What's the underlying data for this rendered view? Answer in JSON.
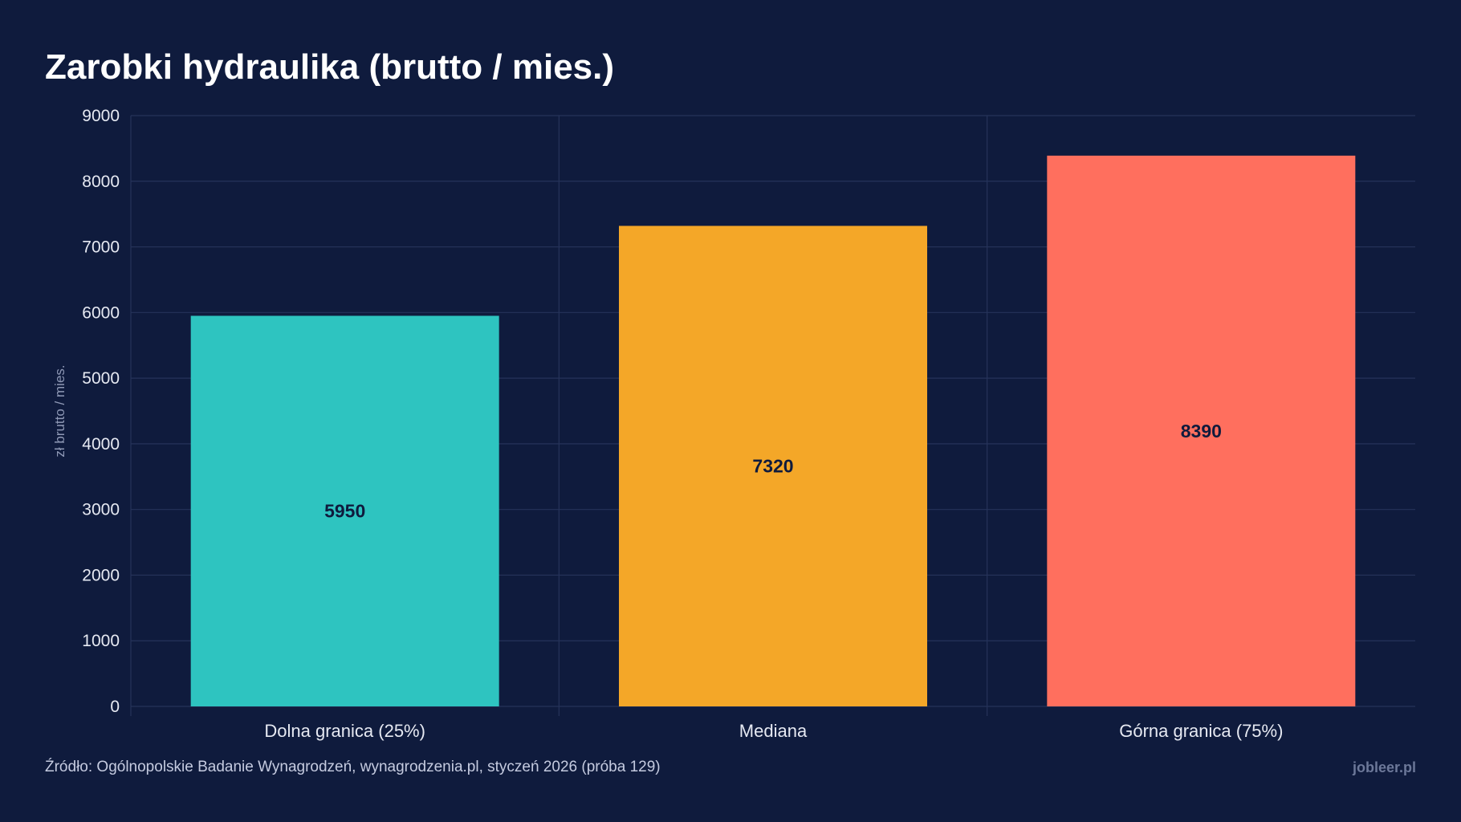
{
  "chart_data": {
    "type": "bar",
    "title": "Zarobki hydraulika (brutto / mies.)",
    "xlabel": "",
    "ylabel": "zł brutto / mies.",
    "categories": [
      "Dolna granica (25%)",
      "Mediana",
      "Górna granica (75%)"
    ],
    "values": [
      5950,
      7320,
      8390
    ],
    "data_labels": [
      "5950",
      "7320",
      "8390"
    ],
    "colors": [
      "#2ec4c0",
      "#f4a728",
      "#ff6f5e"
    ],
    "ylim": [
      0,
      9000
    ],
    "yticks": [
      0,
      1000,
      2000,
      3000,
      4000,
      5000,
      6000,
      7000,
      8000,
      9000
    ],
    "ytick_labels": [
      "0",
      "1000",
      "2000",
      "3000",
      "4000",
      "5000",
      "6000",
      "7000",
      "8000",
      "9000"
    ],
    "grid": true,
    "legend": "none"
  },
  "footer": {
    "source": "Źródło: Ogólnopolskie Badanie Wynagrodzeń, wynagrodzenia.pl, styczeń 2026 (próba 129)",
    "brand": "jobleer.pl"
  },
  "colors": {
    "background": "#0f1b3d",
    "grid": "#26335a",
    "tick_text": "#e6e9f2",
    "axis_label": "#8e98b5",
    "bar_label": "#0f1b3d"
  }
}
